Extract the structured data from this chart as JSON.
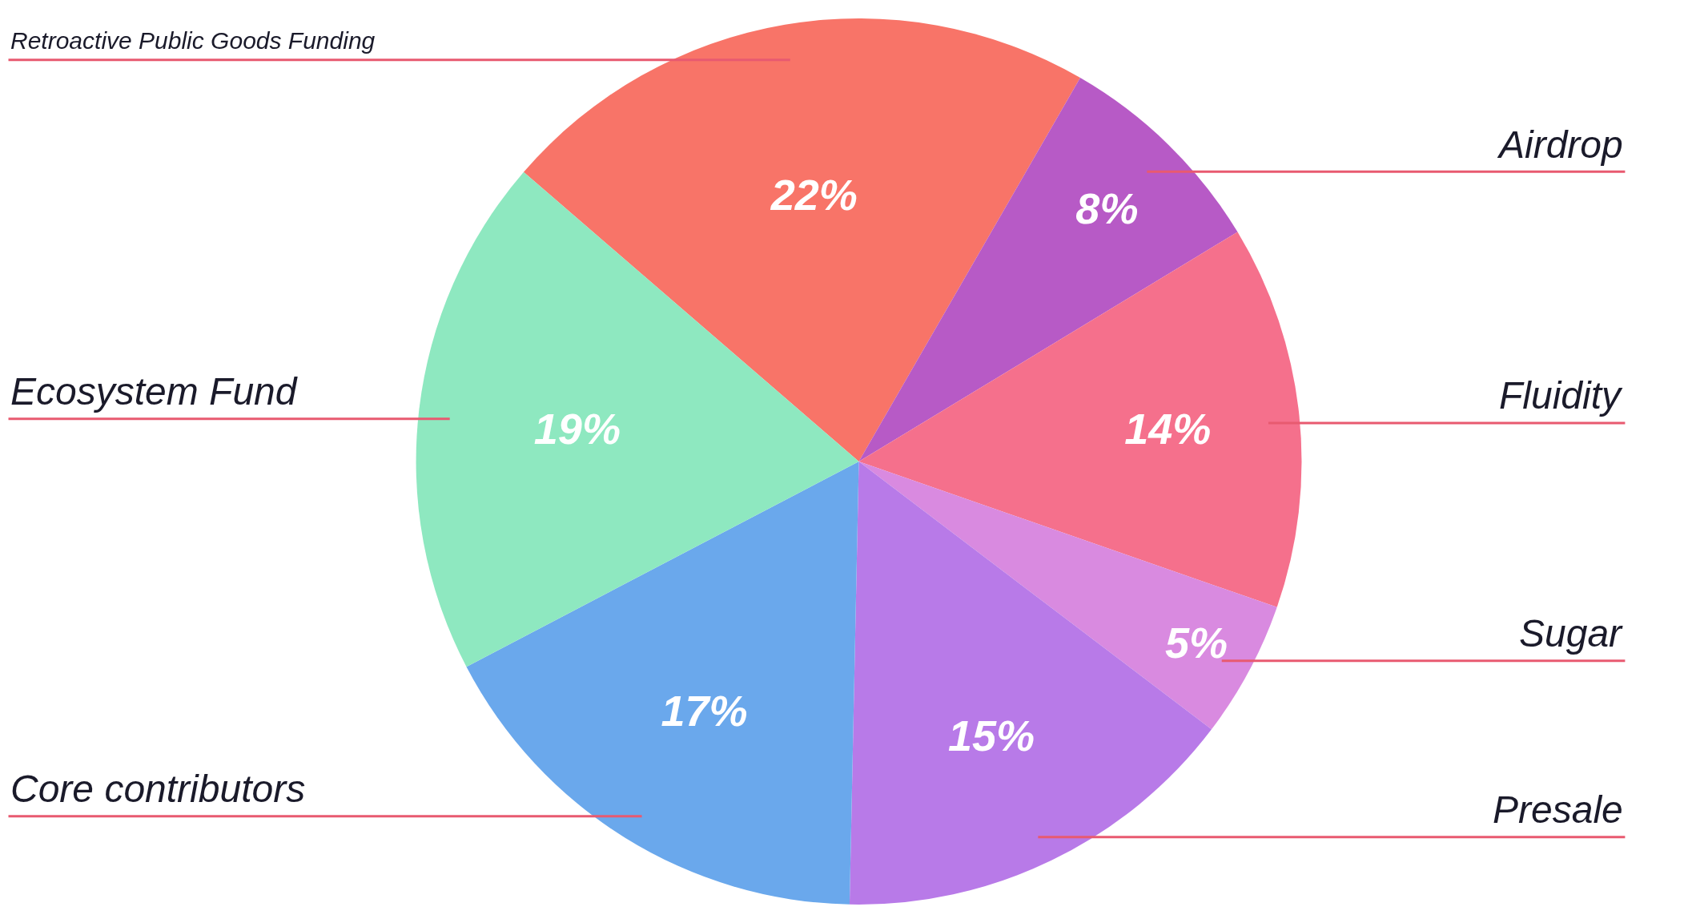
{
  "chart_data": {
    "type": "pie",
    "categories": [
      "Retroactive Public Goods Funding",
      "Airdrop",
      "Fluidity",
      "Sugar",
      "Presale",
      "Core contributors",
      "Ecosystem Fund"
    ],
    "values": [
      22,
      8,
      14,
      5,
      15,
      17,
      19
    ],
    "value_labels": [
      "22%",
      "8%",
      "14%",
      "5%",
      "15%",
      "17%",
      "19%"
    ],
    "colors": [
      "#f87468",
      "#b75ac6",
      "#f5708c",
      "#d98ae0",
      "#b87ae8",
      "#6aa8ec",
      "#8ee8c0"
    ],
    "legend": false
  }
}
